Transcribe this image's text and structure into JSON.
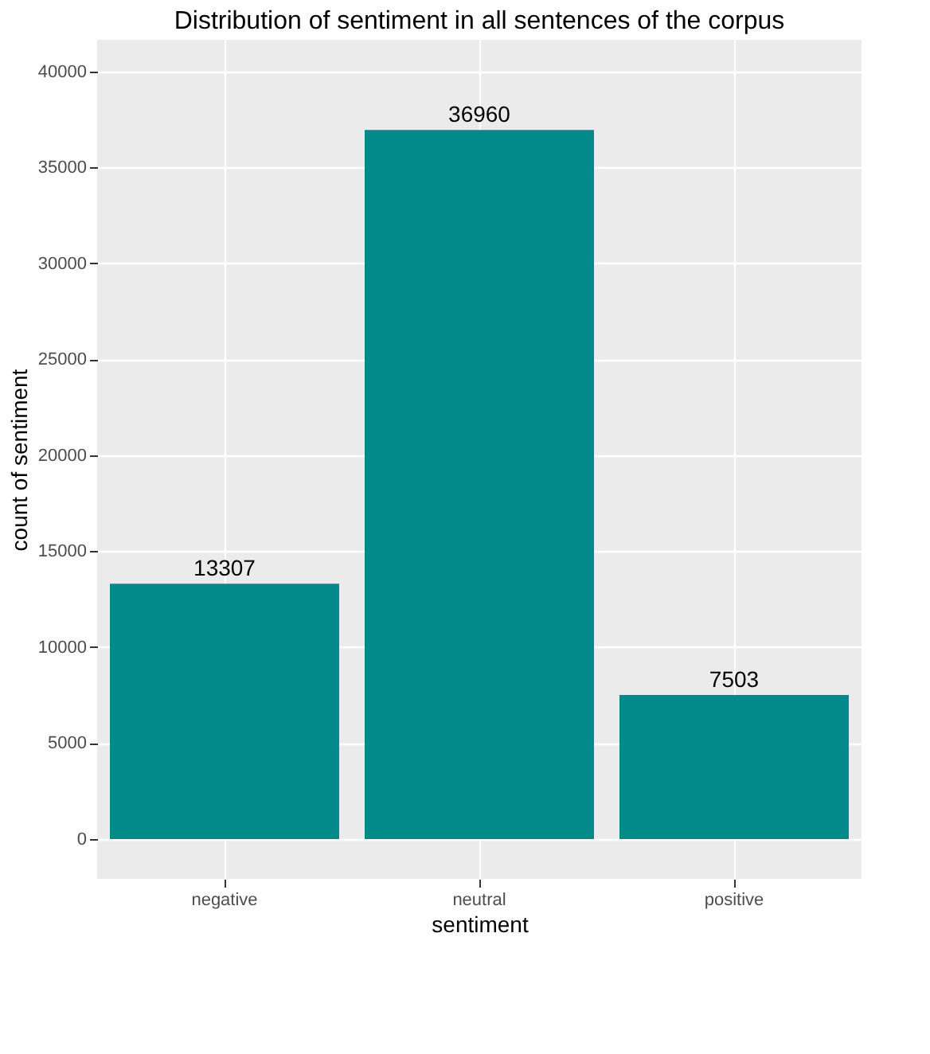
{
  "chart_data": {
    "type": "bar",
    "title": "Distribution of sentiment in all sentences of the corpus",
    "xlabel": "sentiment",
    "ylabel": "count of sentiment",
    "categories": [
      "negative",
      "neutral",
      "positive"
    ],
    "values": [
      13307,
      36960,
      7503
    ],
    "color": "#008b8b",
    "ylim": [
      -2080,
      41660
    ],
    "yticks": [
      0,
      5000,
      10000,
      15000,
      20000,
      25000,
      30000,
      35000,
      40000
    ],
    "grid": true,
    "data_labels": true
  }
}
